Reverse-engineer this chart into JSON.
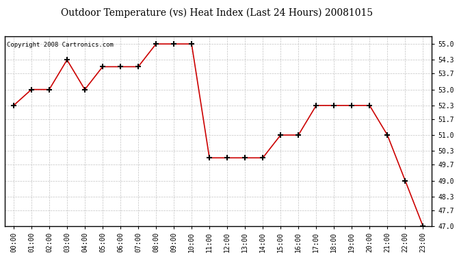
{
  "title": "Outdoor Temperature (vs) Heat Index (Last 24 Hours) 20081015",
  "copyright_text": "Copyright 2008 Cartronics.com",
  "x_labels": [
    "00:00",
    "01:00",
    "02:00",
    "03:00",
    "04:00",
    "05:00",
    "06:00",
    "07:00",
    "08:00",
    "09:00",
    "10:00",
    "11:00",
    "12:00",
    "13:00",
    "14:00",
    "15:00",
    "16:00",
    "17:00",
    "18:00",
    "19:00",
    "20:00",
    "21:00",
    "22:00",
    "23:00"
  ],
  "y_values": [
    52.3,
    53.0,
    53.0,
    54.3,
    53.0,
    54.0,
    54.0,
    54.0,
    55.0,
    55.0,
    55.0,
    50.0,
    50.0,
    50.0,
    50.0,
    51.0,
    51.0,
    52.3,
    52.3,
    52.3,
    52.3,
    51.0,
    49.0,
    47.0
  ],
  "line_color": "#cc0000",
  "marker": "+",
  "marker_color": "#000000",
  "marker_size": 6,
  "marker_linewidth": 1.5,
  "ylim_min": 47.0,
  "ylim_max": 55.35,
  "ytick_values": [
    47.0,
    47.7,
    48.3,
    49.0,
    49.7,
    50.3,
    51.0,
    51.7,
    52.3,
    53.0,
    53.7,
    54.3,
    55.0
  ],
  "background_color": "#ffffff",
  "grid_color": "#bbbbbb",
  "title_fontsize": 10,
  "axis_fontsize": 7,
  "copyright_fontsize": 6.5,
  "linewidth": 1.2
}
